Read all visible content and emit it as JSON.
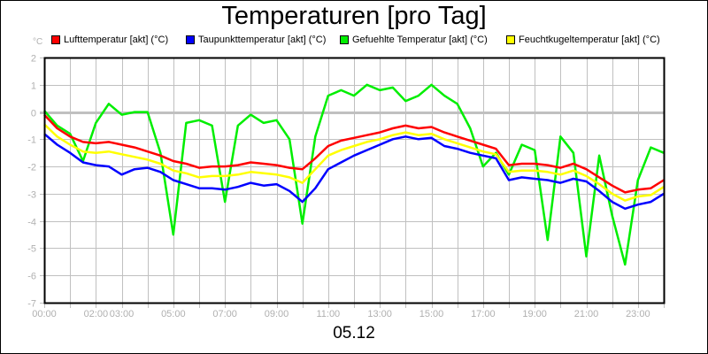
{
  "chart_data": {
    "type": "line",
    "title": "Temperaturen [pro Tag]",
    "xlabel": "05.12",
    "ylabel": "°C",
    "ylim": [
      -7,
      2
    ],
    "yticks": [
      2,
      1,
      0,
      -1,
      -2,
      -3,
      -4,
      -5,
      -6,
      -7
    ],
    "xlim": [
      0,
      24
    ],
    "xtick_labels": [
      {
        "h": 0,
        "label": "00:00"
      },
      {
        "h": 2,
        "label": "02:00"
      },
      {
        "h": 3,
        "label": "03:00"
      },
      {
        "h": 5,
        "label": "05:00"
      },
      {
        "h": 7,
        "label": "07:00"
      },
      {
        "h": 9,
        "label": "09:00"
      },
      {
        "h": 11,
        "label": "11:00"
      },
      {
        "h": 13,
        "label": "13:00"
      },
      {
        "h": 15,
        "label": "15:00"
      },
      {
        "h": 17,
        "label": "17:00"
      },
      {
        "h": 19,
        "label": "19:00"
      },
      {
        "h": 21,
        "label": "21:00"
      },
      {
        "h": 23,
        "label": "23:00"
      }
    ],
    "grid": true,
    "legend_position": "top",
    "x": [
      0,
      0.5,
      1,
      1.5,
      2,
      2.5,
      3,
      3.5,
      4,
      4.5,
      5,
      5.5,
      6,
      6.5,
      7,
      7.5,
      8,
      8.5,
      9,
      9.5,
      10,
      10.5,
      11,
      11.5,
      12,
      12.5,
      13,
      13.5,
      14,
      14.5,
      15,
      15.5,
      16,
      16.5,
      17,
      17.5,
      18,
      18.5,
      19,
      19.5,
      20,
      20.5,
      21,
      21.5,
      22,
      22.5,
      23,
      23.5,
      24
    ],
    "series": [
      {
        "name": "Lufttemperatur [akt] (°C)",
        "color": "#ff0000",
        "values": [
          -0.1,
          -0.6,
          -0.9,
          -1.1,
          -1.15,
          -1.1,
          -1.2,
          -1.3,
          -1.45,
          -1.6,
          -1.8,
          -1.9,
          -2.05,
          -2.0,
          -2.0,
          -1.95,
          -1.85,
          -1.9,
          -1.95,
          -2.05,
          -2.1,
          -1.7,
          -1.25,
          -1.05,
          -0.95,
          -0.85,
          -0.75,
          -0.6,
          -0.5,
          -0.6,
          -0.55,
          -0.75,
          -0.9,
          -1.05,
          -1.2,
          -1.35,
          -1.95,
          -1.9,
          -1.9,
          -1.95,
          -2.05,
          -1.9,
          -2.1,
          -2.4,
          -2.7,
          -2.95,
          -2.85,
          -2.8,
          -2.5
        ]
      },
      {
        "name": "Taupunkttemperatur [akt] (°C)",
        "color": "#0000ff",
        "values": [
          -0.8,
          -1.2,
          -1.5,
          -1.85,
          -1.95,
          -2.0,
          -2.3,
          -2.1,
          -2.05,
          -2.2,
          -2.5,
          -2.65,
          -2.8,
          -2.8,
          -2.85,
          -2.75,
          -2.6,
          -2.7,
          -2.65,
          -2.9,
          -3.3,
          -2.8,
          -2.1,
          -1.85,
          -1.6,
          -1.4,
          -1.2,
          -1.0,
          -0.9,
          -1.0,
          -0.95,
          -1.25,
          -1.35,
          -1.5,
          -1.6,
          -1.7,
          -2.5,
          -2.4,
          -2.45,
          -2.5,
          -2.6,
          -2.45,
          -2.55,
          -2.9,
          -3.3,
          -3.55,
          -3.4,
          -3.3,
          -3.0
        ]
      },
      {
        "name": "Gefuehlte Temperatur [akt] (°C)",
        "color": "#00ee00",
        "values": [
          0.05,
          -0.5,
          -0.8,
          -1.8,
          -0.4,
          0.3,
          -0.1,
          0.0,
          0.0,
          -1.5,
          -4.5,
          -0.4,
          -0.3,
          -0.5,
          -3.3,
          -0.5,
          -0.1,
          -0.4,
          -0.3,
          -1.0,
          -4.1,
          -0.9,
          0.6,
          0.8,
          0.6,
          1.0,
          0.8,
          0.9,
          0.4,
          0.6,
          1.0,
          0.6,
          0.3,
          -0.6,
          -2.0,
          -1.5,
          -2.3,
          -1.2,
          -1.4,
          -4.7,
          -0.9,
          -1.5,
          -5.3,
          -1.6,
          -3.8,
          -5.6,
          -2.5,
          -1.3,
          -1.5
        ]
      },
      {
        "name": "Feuchtkugeltemperatur [akt] (°C)",
        "color": "#ffff00",
        "values": [
          -0.45,
          -0.9,
          -1.2,
          -1.45,
          -1.5,
          -1.45,
          -1.55,
          -1.65,
          -1.75,
          -1.9,
          -2.15,
          -2.25,
          -2.4,
          -2.35,
          -2.35,
          -2.3,
          -2.2,
          -2.25,
          -2.3,
          -2.4,
          -2.6,
          -2.1,
          -1.6,
          -1.4,
          -1.25,
          -1.1,
          -1.0,
          -0.85,
          -0.75,
          -0.85,
          -0.8,
          -1.0,
          -1.15,
          -1.3,
          -1.45,
          -1.55,
          -2.2,
          -2.15,
          -2.15,
          -2.2,
          -2.3,
          -2.15,
          -2.35,
          -2.65,
          -3.0,
          -3.25,
          -3.1,
          -3.05,
          -2.75
        ]
      }
    ]
  },
  "header": {
    "title": "Temperaturen [pro Tag]",
    "unit": "°C"
  },
  "legend": [
    {
      "label": "Lufttemperatur [akt] (°C)",
      "color": "#ff0000"
    },
    {
      "label": "Taupunkttemperatur [akt] (°C)",
      "color": "#0000ff"
    },
    {
      "label": "Gefuehlte Temperatur [akt] (°C)",
      "color": "#00ee00"
    },
    {
      "label": "Feuchtkugeltemperatur [akt] (°C)",
      "color": "#ffff00"
    }
  ],
  "footer": {
    "date": "05.12"
  }
}
